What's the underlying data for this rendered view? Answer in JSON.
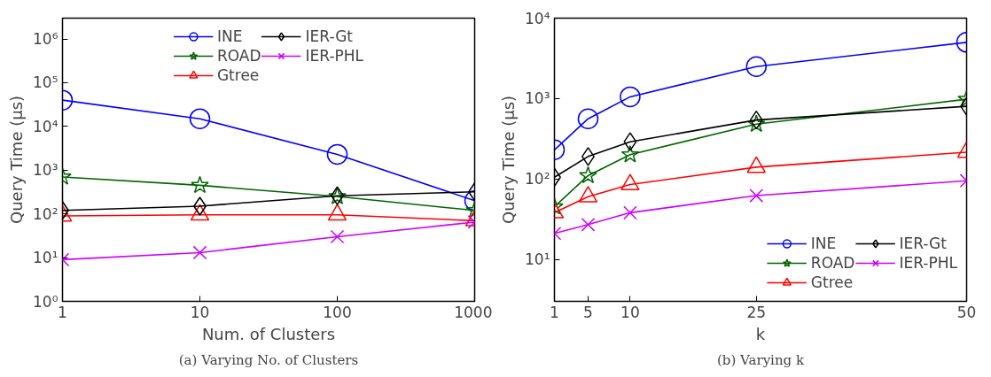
{
  "chart_data": [
    {
      "type": "line",
      "xlabel": "Num. of Clusters",
      "ylabel": "Query Time (µs)",
      "log": "xy",
      "grid": false,
      "legend": "top",
      "x": [
        1,
        10,
        100,
        1000
      ],
      "xlim": [
        1,
        1000
      ],
      "xticks": [
        1,
        10,
        100,
        1000
      ],
      "ylim": [
        1,
        3000000
      ],
      "yticks": [
        {
          "value": 1,
          "label": "10⁰"
        },
        {
          "value": 10,
          "label": "10¹"
        },
        {
          "value": 100,
          "label": "10²"
        },
        {
          "value": 1000,
          "label": "10³"
        },
        {
          "value": 10000,
          "label": "10⁴"
        },
        {
          "value": 100000,
          "label": "10⁵"
        },
        {
          "value": 1000000,
          "label": "10⁶"
        }
      ],
      "annotations": [
        "(a) Varying No. of Clusters"
      ],
      "series": [
        {
          "name": "INE",
          "color": "#0000ff",
          "marker": "circle",
          "values": [
            40000,
            15000,
            2300,
            200
          ]
        },
        {
          "name": "ROAD",
          "color": "#006400",
          "marker": "star",
          "values": [
            700,
            450,
            250,
            120
          ]
        },
        {
          "name": "Gtree",
          "color": "#ff0000",
          "marker": "triangle",
          "values": [
            90,
            95,
            95,
            70
          ]
        },
        {
          "name": "IER-Gt",
          "color": "#000000",
          "marker": "diamond",
          "values": [
            120,
            150,
            260,
            320
          ]
        },
        {
          "name": "IER-PHL",
          "color": "#cc00ff",
          "marker": "cross",
          "values": [
            9,
            13,
            30,
            65
          ]
        }
      ]
    },
    {
      "type": "line",
      "xlabel": "k",
      "ylabel": "Query Time (µs)",
      "log": "y",
      "grid": false,
      "legend": "bottom right",
      "x": [
        1,
        5,
        10,
        25,
        50
      ],
      "xlim": [
        1,
        50
      ],
      "xticks": [
        1,
        5,
        10,
        25,
        50
      ],
      "ylim": [
        3,
        10000
      ],
      "yticks": [
        {
          "value": 10,
          "label": "10¹"
        },
        {
          "value": 100,
          "label": "10²"
        },
        {
          "value": 1000,
          "label": "10³"
        },
        {
          "value": 10000,
          "label": "10⁴"
        }
      ],
      "annotations": [
        "(b) Varying k"
      ],
      "series": [
        {
          "name": "INE",
          "color": "#0000ff",
          "marker": "circle",
          "values": [
            230,
            560,
            1050,
            2500,
            5000
          ]
        },
        {
          "name": "ROAD",
          "color": "#006400",
          "marker": "star",
          "values": [
            45,
            110,
            200,
            480,
            980
          ]
        },
        {
          "name": "Gtree",
          "color": "#ff0000",
          "marker": "triangle",
          "values": [
            38,
            60,
            85,
            140,
            215
          ]
        },
        {
          "name": "IER-Gt",
          "color": "#000000",
          "marker": "diamond",
          "values": [
            105,
            190,
            290,
            540,
            800
          ]
        },
        {
          "name": "IER-PHL",
          "color": "#cc00ff",
          "marker": "cross",
          "values": [
            21,
            27,
            38,
            62,
            95
          ]
        }
      ]
    }
  ]
}
